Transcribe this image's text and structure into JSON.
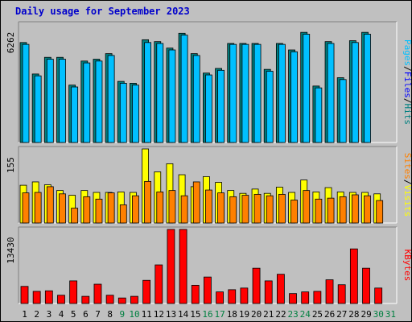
{
  "title": "Daily usage for September 2023",
  "colors": {
    "pages": "#00c0ff",
    "files": "#0000ff",
    "hits": "#008080",
    "sites": "#ff8000",
    "visits": "#ffff00",
    "kbytes": "#ff0000",
    "weekday_label": "#000000",
    "weekend_label": "#008040"
  },
  "chart_data": [
    {
      "type": "bar",
      "name": "top",
      "categories": [
        "1",
        "2",
        "3",
        "4",
        "5",
        "6",
        "7",
        "8",
        "9",
        "10",
        "11",
        "12",
        "13",
        "14",
        "15",
        "16",
        "17",
        "18",
        "19",
        "20",
        "21",
        "22",
        "23",
        "24",
        "25",
        "26",
        "27",
        "28",
        "29",
        "30",
        "31"
      ],
      "weekend_days": [
        "9",
        "10",
        "16",
        "17",
        "23",
        "24",
        "30",
        "31"
      ],
      "y_max_label": "6262",
      "legend": [
        {
          "label": "Pages",
          "sep": "/"
        },
        {
          "label": "Files",
          "sep": "/"
        },
        {
          "label": "Hits",
          "sep": ""
        }
      ],
      "series": [
        {
          "name": "Hits",
          "values": [
            5400,
            3700,
            4600,
            4600,
            3100,
            4400,
            4500,
            4800,
            3300,
            3200,
            5550,
            5450,
            5100,
            5900,
            4800,
            3750,
            4000,
            5350,
            5350,
            5350,
            3950,
            5350,
            5000,
            5950,
            3050,
            5450,
            3500,
            5500,
            5950,
            0,
            0
          ]
        },
        {
          "name": "Pages",
          "values": [
            5300,
            3600,
            4500,
            4500,
            3000,
            4300,
            4400,
            4700,
            3200,
            3100,
            5400,
            5350,
            5000,
            5800,
            4700,
            3650,
            3900,
            5300,
            5300,
            5300,
            3850,
            5300,
            4900,
            5850,
            2950,
            5350,
            3400,
            5400,
            5850,
            0,
            0
          ]
        }
      ],
      "ylim": [
        0,
        6262
      ]
    },
    {
      "type": "bar",
      "name": "middle",
      "y_max_label": "155",
      "legend": [
        {
          "label": "Sites",
          "sep": "/"
        },
        {
          "label": "Visits",
          "sep": ""
        }
      ],
      "series": [
        {
          "name": "Visits",
          "values": [
            79,
            86,
            80,
            68,
            58,
            68,
            64,
            64,
            65,
            64,
            155,
            107,
            124,
            101,
            76,
            97,
            85,
            68,
            62,
            71,
            62,
            75,
            64,
            90,
            65,
            74,
            65,
            64,
            64,
            61,
            0
          ]
        },
        {
          "name": "Sites",
          "values": [
            63,
            64,
            76,
            61,
            31,
            55,
            50,
            63,
            38,
            57,
            87,
            65,
            68,
            57,
            86,
            69,
            63,
            55,
            58,
            60,
            57,
            60,
            48,
            68,
            50,
            52,
            55,
            59,
            57,
            47,
            0
          ]
        }
      ],
      "ylim": [
        0,
        155
      ]
    },
    {
      "type": "bar",
      "name": "bottom",
      "y_max_label": "13430",
      "legend": [
        {
          "label": "KBytes",
          "sep": ""
        }
      ],
      "series": [
        {
          "name": "KBytes",
          "values": [
            3100,
            2200,
            2300,
            1500,
            4100,
            1300,
            3500,
            1500,
            1000,
            1300,
            4200,
            7000,
            13430,
            13430,
            3300,
            4800,
            2100,
            2500,
            2800,
            6400,
            4100,
            5300,
            1800,
            2100,
            2200,
            4300,
            3400,
            9900,
            6400,
            2800,
            0
          ]
        }
      ],
      "ylim": [
        0,
        13430
      ]
    }
  ]
}
